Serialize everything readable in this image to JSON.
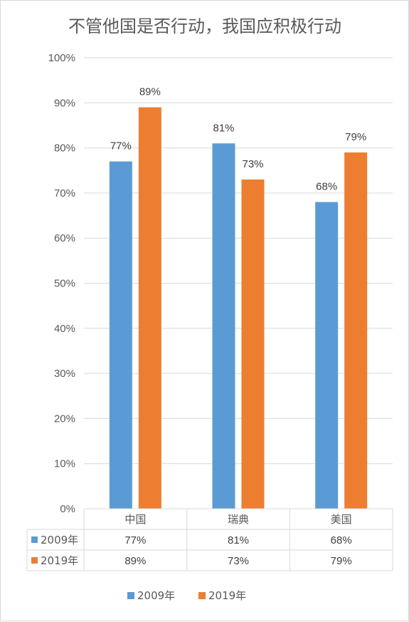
{
  "chart_data": {
    "type": "bar",
    "title": "不管他国是否行动，我国应积极行动",
    "categories": [
      "中国",
      "瑞典",
      "美国"
    ],
    "series": [
      {
        "name": "2009年",
        "values": [
          77,
          81,
          68
        ],
        "labels": [
          "77%",
          "81%",
          "68%"
        ],
        "color": "#5b9bd5"
      },
      {
        "name": "2019年",
        "values": [
          89,
          73,
          79
        ],
        "labels": [
          "89%",
          "73%",
          "79%"
        ],
        "color": "#ed7d31"
      }
    ],
    "ylim": [
      0,
      100
    ],
    "yticks": [
      "0%",
      "10%",
      "20%",
      "30%",
      "40%",
      "50%",
      "60%",
      "70%",
      "80%",
      "90%",
      "100%"
    ],
    "grid": true,
    "data_table": true,
    "legend_position": "bottom",
    "gridline_color": "#d9d9d9",
    "text_color": "#595959"
  }
}
